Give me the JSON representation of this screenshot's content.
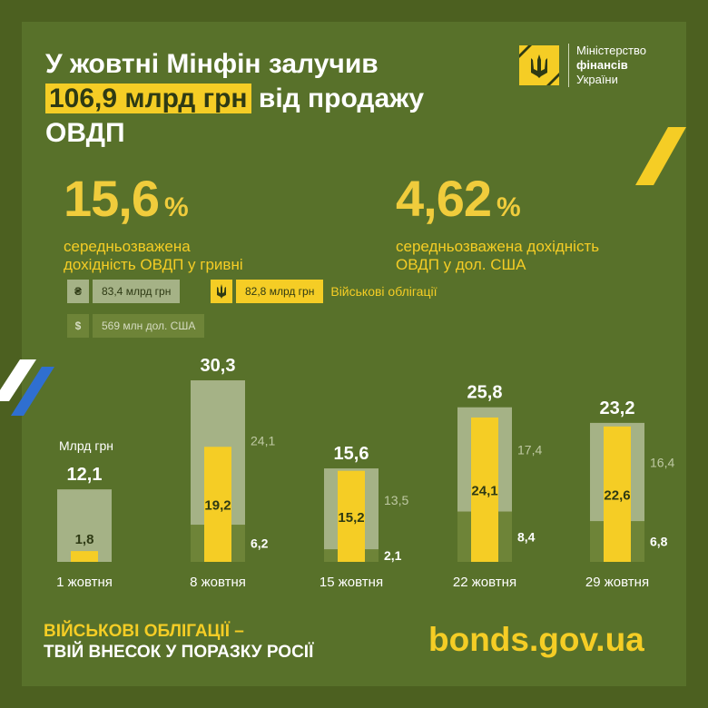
{
  "title": {
    "line1": "У жовтні Мінфін залучив",
    "highlight": "106,9 млрд грн",
    "line2_rest": " від продажу",
    "line3": "ОВДП"
  },
  "logo": {
    "line1": "Міністерство",
    "line2": "фінансів",
    "line3": "України"
  },
  "stats": [
    {
      "value": "15,6",
      "unit": "%",
      "desc1": "середньозважена",
      "desc2": "дохідність ОВДП у гривні"
    },
    {
      "value": "4,62",
      "unit": "%",
      "desc1": "середньозважена дохідність",
      "desc2": "ОВДП у дол. США"
    }
  ],
  "legend": {
    "uah_icon": "₴",
    "uah_label": "83,4 млрд грн",
    "mil_icon": "trident-icon",
    "mil_label": "82,8 млрд грн",
    "mil_text": "Військові облігації",
    "usd_icon": "$",
    "usd_label": "569 млн дол. США"
  },
  "colors": {
    "background": "#4c6020",
    "frame": "#58712a",
    "accent_yellow": "#f5cd25",
    "uah_bar": "#a5b286",
    "usd_bar": "#6e8438"
  },
  "chart_data": {
    "type": "bar",
    "unit_label": "Млрд грн",
    "categories": [
      "1 жовтня",
      "8 жовтня",
      "15 жовтня",
      "22 жовтня",
      "29 жовтня"
    ],
    "totals": [
      12.1,
      30.3,
      15.6,
      25.8,
      23.2
    ],
    "total_labels": [
      "12,1",
      "30,3",
      "15,6",
      "25,8",
      "23,2"
    ],
    "series": [
      {
        "key": "uah",
        "values": [
          12.1,
          24.1,
          13.5,
          17.4,
          16.4
        ],
        "labels": [
          "",
          "24,1",
          "13,5",
          "17,4",
          "16,4"
        ]
      },
      {
        "key": "usd",
        "values": [
          0,
          6.2,
          2.1,
          8.4,
          6.8
        ],
        "labels": [
          "",
          "6,2",
          "2,1",
          "8,4",
          "6,8"
        ]
      },
      {
        "key": "military",
        "values": [
          1.8,
          19.2,
          15.2,
          24.1,
          22.6
        ],
        "labels": [
          "1,8",
          "19,2",
          "15,2",
          "24,1",
          "22,6"
        ]
      }
    ]
  },
  "footer": {
    "slogan1": "ВІЙСЬКОВІ ОБЛІГАЦІЇ –",
    "slogan2": "ТВІЙ ВНЕСОК У ПОРАЗКУ РОСІЇ",
    "url": "bonds.gov.ua"
  }
}
